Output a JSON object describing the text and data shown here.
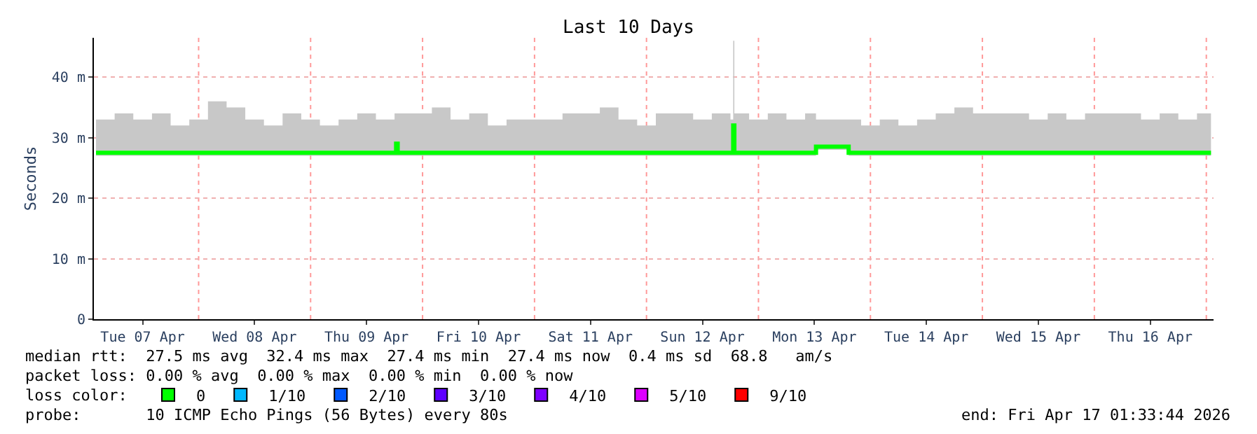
{
  "chart_data": {
    "type": "step",
    "title": "Last 10 Days",
    "ylabel": "Seconds",
    "xlim": [
      "2026-04-07T01:33",
      "2026-04-17T01:33"
    ],
    "xticks": [
      {
        "value": "2026-04-07T12:00",
        "label": "Tue 07 Apr"
      },
      {
        "value": "2026-04-08T12:00",
        "label": "Wed 08 Apr"
      },
      {
        "value": "2026-04-09T12:00",
        "label": "Thu 09 Apr"
      },
      {
        "value": "2026-04-10T12:00",
        "label": "Fri 10 Apr"
      },
      {
        "value": "2026-04-11T12:00",
        "label": "Sat 11 Apr"
      },
      {
        "value": "2026-04-12T12:00",
        "label": "Sun 12 Apr"
      },
      {
        "value": "2026-04-13T12:00",
        "label": "Mon 13 Apr"
      },
      {
        "value": "2026-04-14T12:00",
        "label": "Tue 14 Apr"
      },
      {
        "value": "2026-04-15T12:00",
        "label": "Wed 15 Apr"
      },
      {
        "value": "2026-04-16T12:00",
        "label": "Thu 16 Apr"
      }
    ],
    "ylim": [
      0,
      46.5
    ],
    "yticks": [
      0,
      {
        "value": 10,
        "label": "10 m"
      },
      {
        "value": 20,
        "label": "20 m"
      },
      {
        "value": 30,
        "label": "30 m"
      },
      {
        "value": 40,
        "label": "40 m"
      }
    ],
    "grid": "y",
    "line_style": "solid",
    "legend": "bottom left",
    "series": [
      {
        "color": "#00ff00",
        "x": [
          "2026-04-07T02:00",
          "2026-04-07T06:00",
          "2026-04-07T10:00",
          "2026-04-07T14:00",
          "2026-04-07T18:00",
          "2026-04-07T22:00",
          "2026-04-08T02:00",
          "2026-04-08T06:00",
          "2026-04-08T10:00",
          "2026-04-08T14:00",
          "2026-04-08T18:00",
          "2026-04-08T22:00",
          "2026-04-09T02:00",
          "2026-04-09T06:00",
          "2026-04-09T10:00",
          "2026-04-09T14:00",
          "2026-04-09T18:00",
          "2026-04-09T18:20",
          "2026-04-09T18:40",
          "2026-04-09T22:00",
          "2026-04-10T02:00",
          "2026-04-10T06:00",
          "2026-04-10T10:00",
          "2026-04-10T14:00",
          "2026-04-10T18:00",
          "2026-04-10T22:00",
          "2026-04-11T02:00",
          "2026-04-11T06:00",
          "2026-04-11T10:00",
          "2026-04-11T14:00",
          "2026-04-11T18:00",
          "2026-04-11T22:00",
          "2026-04-12T02:00",
          "2026-04-12T06:00",
          "2026-04-12T10:00",
          "2026-04-12T14:00",
          "2026-04-12T18:00",
          "2026-04-12T18:35",
          "2026-04-12T18:50",
          "2026-04-12T22:00",
          "2026-04-13T02:00",
          "2026-04-13T06:00",
          "2026-04-13T10:00",
          "2026-04-13T12:20",
          "2026-04-13T16:00",
          "2026-04-13T19:20",
          "2026-04-13T22:00",
          "2026-04-14T02:00",
          "2026-04-14T06:00",
          "2026-04-14T10:00",
          "2026-04-14T14:00",
          "2026-04-14T18:00",
          "2026-04-14T22:00",
          "2026-04-15T02:00",
          "2026-04-15T06:00",
          "2026-04-15T10:00",
          "2026-04-15T14:00",
          "2026-04-15T18:00",
          "2026-04-15T22:00",
          "2026-04-16T02:00",
          "2026-04-16T06:00",
          "2026-04-16T10:00",
          "2026-04-16T14:00",
          "2026-04-16T18:00",
          "2026-04-16T22:00",
          "2026-04-17T01:00"
        ],
        "values": [
          27.5,
          27.5,
          27.5,
          27.5,
          27.5,
          27.5,
          27.5,
          27.5,
          27.5,
          27.5,
          27.5,
          27.5,
          27.5,
          27.5,
          27.5,
          27.5,
          27.5,
          29,
          27.5,
          27.5,
          27.5,
          27.5,
          27.5,
          27.5,
          27.5,
          27.5,
          27.5,
          27.5,
          27.5,
          27.5,
          27.5,
          27.5,
          27.5,
          27.5,
          27.5,
          27.5,
          27.5,
          32,
          27.5,
          27.5,
          27.5,
          27.5,
          27.5,
          28.5,
          28.5,
          27.5,
          27.5,
          27.5,
          27.5,
          27.5,
          27.5,
          27.5,
          27.5,
          27.5,
          27.5,
          27.5,
          27.5,
          27.5,
          27.5,
          27.5,
          27.5,
          27.5,
          27.5,
          27.5,
          27.5,
          27.5
        ],
        "lower": [
          27,
          27,
          27,
          27,
          27,
          27,
          27,
          27,
          27,
          27,
          27,
          27,
          27,
          27,
          27,
          27,
          27,
          27,
          27,
          27,
          27,
          27,
          27,
          27,
          27,
          27,
          27,
          27,
          27,
          27,
          27,
          27,
          27,
          27,
          27,
          27,
          27,
          27,
          27,
          27,
          27,
          27,
          27,
          28,
          28,
          27,
          27,
          27,
          27,
          27,
          27,
          27,
          27,
          27,
          27,
          27,
          27,
          27,
          27,
          27,
          27,
          27,
          27,
          27,
          27,
          27
        ],
        "upper": [
          33,
          34,
          33,
          34,
          32,
          33,
          36,
          35,
          33,
          32,
          34,
          33,
          32,
          33,
          34,
          33,
          34,
          34,
          34,
          34,
          35,
          33,
          34,
          32,
          33,
          33,
          33,
          34,
          34,
          35,
          33,
          32,
          34,
          34,
          33,
          34,
          33,
          46,
          34,
          33,
          34,
          33,
          34,
          33,
          33,
          33,
          32,
          33,
          32,
          33,
          34,
          35,
          34,
          34,
          34,
          33,
          34,
          33,
          34,
          34,
          34,
          33,
          34,
          33,
          34,
          33
        ]
      },
      {
        "type": "scatter",
        "marker": "square",
        "name": "0",
        "color": "#00ff00"
      },
      {
        "type": "scatter",
        "marker": "square",
        "name": "1/10",
        "color": "#00b8ff"
      },
      {
        "type": "scatter",
        "marker": "square",
        "name": "2/10",
        "color": "#0059ff"
      },
      {
        "type": "scatter",
        "marker": "square",
        "name": "3/10",
        "color": "#5e00ff"
      },
      {
        "type": "scatter",
        "marker": "square",
        "name": "4/10",
        "color": "#7e00ff"
      },
      {
        "type": "scatter",
        "marker": "square",
        "name": "5/10",
        "color": "#dd00ff"
      },
      {
        "type": "scatter",
        "marker": "square",
        "name": "9/10",
        "color": "#ff0000"
      }
    ],
    "ref_lines": [
      {
        "axis": "x",
        "value": "2026-04-08T00:00",
        "color": "#ff9999",
        "line_style": "dotted"
      },
      {
        "axis": "x",
        "value": "2026-04-09T00:00",
        "color": "#ff9999",
        "line_style": "dotted"
      },
      {
        "axis": "x",
        "value": "2026-04-10T00:00",
        "color": "#ff9999",
        "line_style": "dotted"
      },
      {
        "axis": "x",
        "value": "2026-04-11T00:00",
        "color": "#ff9999",
        "line_style": "dotted"
      },
      {
        "axis": "x",
        "value": "2026-04-12T00:00",
        "color": "#ff9999",
        "line_style": "dotted"
      },
      {
        "axis": "x",
        "value": "2026-04-13T00:00",
        "color": "#ff9999",
        "line_style": "dotted"
      },
      {
        "axis": "x",
        "value": "2026-04-14T00:00",
        "color": "#ff9999",
        "line_style": "dotted"
      },
      {
        "axis": "x",
        "value": "2026-04-15T00:00",
        "color": "#ff9999",
        "line_style": "dotted"
      },
      {
        "axis": "x",
        "value": "2026-04-16T00:00",
        "color": "#ff9999",
        "line_style": "dotted"
      },
      {
        "axis": "x",
        "value": "2026-04-17T00:00",
        "color": "#ff9999",
        "line_style": "dotted"
      }
    ],
    "annotations": [
      "median rtt:  27.5 ms avg  32.4 ms max  27.4 ms min  27.4 ms now  0.4 ms sd  68.8   am/s",
      "packet loss: 0.00 % avg  0.00 % max  0.00 % min  0.00 % now",
      "loss color:",
      "probe:       10 ICMP Echo Pings (56 Bytes) every 80s",
      "end: Fri Apr 17 01:33:44 2026"
    ]
  }
}
